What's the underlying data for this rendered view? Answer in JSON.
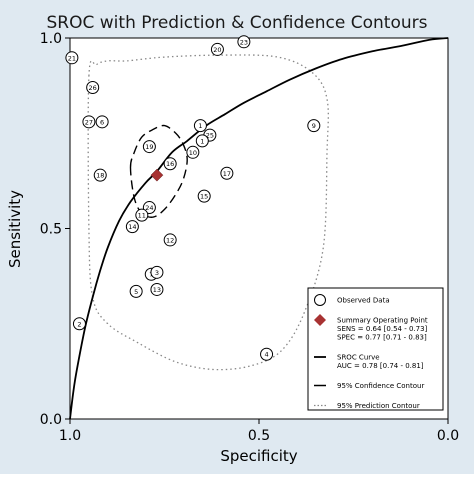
{
  "chart_data": {
    "type": "scatter",
    "title": "SROC with Prediction & Confidence Contours",
    "xlabel": "Specificity",
    "ylabel": "Sensitivity",
    "xlim": [
      1.0,
      0.0
    ],
    "ylim": [
      0.0,
      1.0
    ],
    "x_reversed": true,
    "x_ticks": [
      {
        "value": 1.0,
        "label": "1.0"
      },
      {
        "value": 0.5,
        "label": "0.5"
      },
      {
        "value": 0.0,
        "label": "0.0"
      }
    ],
    "y_ticks": [
      {
        "value": 0.0,
        "label": "0.0"
      },
      {
        "value": 0.5,
        "label": "0.5"
      },
      {
        "value": 1.0,
        "label": "1.0"
      }
    ],
    "grid": false,
    "legend_position": "bottom-right",
    "colors": {
      "background": "#dfe9f1",
      "plot_background": "#ffffff",
      "summary_point": "#a83232",
      "line": "#000000",
      "prediction_contour": "#888888"
    },
    "observed_data": [
      {
        "label": "21",
        "specificity": 0.995,
        "sensitivity": 0.948
      },
      {
        "label": "23",
        "specificity": 0.54,
        "sensitivity": 0.99
      },
      {
        "label": "20",
        "specificity": 0.61,
        "sensitivity": 0.97
      },
      {
        "label": "26",
        "specificity": 0.94,
        "sensitivity": 0.87
      },
      {
        "label": "27",
        "specificity": 0.95,
        "sensitivity": 0.78
      },
      {
        "label": "6",
        "specificity": 0.915,
        "sensitivity": 0.78
      },
      {
        "label": "9",
        "specificity": 0.355,
        "sensitivity": 0.77
      },
      {
        "label": "1",
        "specificity": 0.655,
        "sensitivity": 0.77
      },
      {
        "label": "25",
        "specificity": 0.63,
        "sensitivity": 0.745
      },
      {
        "label": "1",
        "specificity": 0.65,
        "sensitivity": 0.73
      },
      {
        "label": "19",
        "specificity": 0.79,
        "sensitivity": 0.715
      },
      {
        "label": "10",
        "specificity": 0.675,
        "sensitivity": 0.7
      },
      {
        "label": "16",
        "specificity": 0.735,
        "sensitivity": 0.67
      },
      {
        "label": "17",
        "specificity": 0.585,
        "sensitivity": 0.645
      },
      {
        "label": "18",
        "specificity": 0.92,
        "sensitivity": 0.64
      },
      {
        "label": "15",
        "specificity": 0.645,
        "sensitivity": 0.585
      },
      {
        "label": "24",
        "specificity": 0.79,
        "sensitivity": 0.555
      },
      {
        "label": "11",
        "specificity": 0.81,
        "sensitivity": 0.535
      },
      {
        "label": "14",
        "specificity": 0.835,
        "sensitivity": 0.505
      },
      {
        "label": "12",
        "specificity": 0.735,
        "sensitivity": 0.47
      },
      {
        "label": "7",
        "specificity": 0.785,
        "sensitivity": 0.38
      },
      {
        "label": "3",
        "specificity": 0.77,
        "sensitivity": 0.385
      },
      {
        "label": "5",
        "specificity": 0.825,
        "sensitivity": 0.335
      },
      {
        "label": "13",
        "specificity": 0.77,
        "sensitivity": 0.34
      },
      {
        "label": "2",
        "specificity": 0.975,
        "sensitivity": 0.25
      },
      {
        "label": "4",
        "specificity": 0.48,
        "sensitivity": 0.17
      }
    ],
    "summary_point": {
      "specificity": 0.77,
      "sensitivity": 0.64
    },
    "sroc_curve": {
      "x": [
        1.0,
        0.99,
        0.98,
        0.96,
        0.94,
        0.92,
        0.9,
        0.87,
        0.84,
        0.8,
        0.77,
        0.73,
        0.69,
        0.64,
        0.59,
        0.54,
        0.48,
        0.42,
        0.35,
        0.28,
        0.2,
        0.12,
        0.05,
        0.0
      ],
      "y": [
        0.0,
        0.08,
        0.14,
        0.24,
        0.32,
        0.39,
        0.45,
        0.52,
        0.57,
        0.62,
        0.65,
        0.7,
        0.73,
        0.77,
        0.8,
        0.83,
        0.86,
        0.89,
        0.92,
        0.945,
        0.965,
        0.98,
        0.995,
        1.0
      ]
    },
    "confidence_contour": {
      "x": [
        0.84,
        0.83,
        0.81,
        0.78,
        0.75,
        0.72,
        0.7,
        0.69,
        0.7,
        0.72,
        0.75,
        0.78,
        0.81,
        0.83,
        0.84
      ],
      "y": [
        0.66,
        0.7,
        0.74,
        0.76,
        0.77,
        0.75,
        0.72,
        0.68,
        0.63,
        0.59,
        0.55,
        0.53,
        0.54,
        0.58,
        0.66
      ]
    },
    "prediction_contour": {
      "x": [
        0.95,
        0.93,
        0.9,
        0.85,
        0.75,
        0.6,
        0.45,
        0.36,
        0.32,
        0.32,
        0.33,
        0.38,
        0.44,
        0.52,
        0.62,
        0.72,
        0.82,
        0.9,
        0.94,
        0.95,
        0.95
      ],
      "y": [
        0.9,
        0.93,
        0.94,
        0.94,
        0.95,
        0.955,
        0.95,
        0.91,
        0.84,
        0.7,
        0.45,
        0.28,
        0.18,
        0.14,
        0.13,
        0.15,
        0.2,
        0.25,
        0.32,
        0.5,
        0.9
      ]
    },
    "legend": [
      {
        "type": "circle",
        "label": "Observed Data"
      },
      {
        "type": "diamond",
        "label": "Summary Operating Point",
        "sub": [
          "SENS = 0.64 [0.54 - 0.73]",
          "SPEC = 0.77 [0.71 - 0.83]"
        ]
      },
      {
        "type": "solid",
        "label": "SROC Curve",
        "sub": [
          "AUC = 0.78 [0.74 - 0.81]"
        ]
      },
      {
        "type": "dashed",
        "label": "95% Confidence Contour",
        "sub": []
      },
      {
        "type": "dotted",
        "label": "95% Prediction Contour",
        "sub": []
      }
    ]
  }
}
